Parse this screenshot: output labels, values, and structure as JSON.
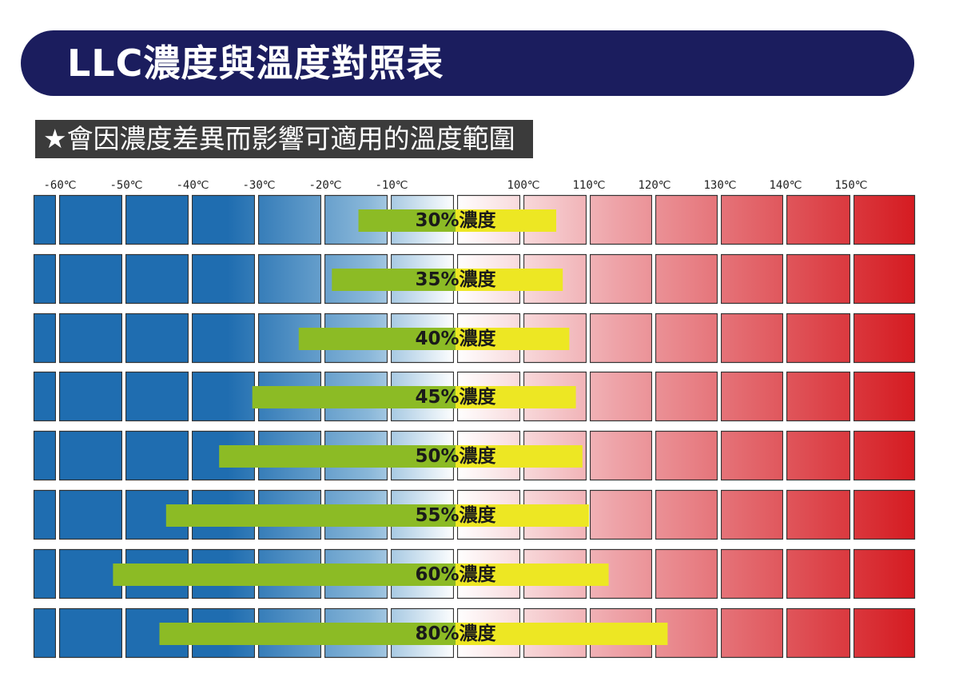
{
  "header": {
    "title": "LLC濃度與溫度對照表",
    "subtitle": "★會因濃度差異而影響可適用的溫度範圍"
  },
  "colors": {
    "banner": "#1b1d5e",
    "subtitle_bg": "#3b3b3b",
    "cold_deep": "#1f6db0",
    "cold_mid": "#89b7d9",
    "neutral": "#ffffff",
    "hot_mid": "#eea3a8",
    "hot_deep": "#d51b21",
    "low_segment": "#8cbb25",
    "high_segment": "#ede723"
  },
  "chart_data": {
    "type": "range-bar",
    "x_ticks": [
      "-60℃",
      "-50℃",
      "-40℃",
      "-30℃",
      "-20℃",
      "-10℃",
      "100℃",
      "110℃",
      "120℃",
      "130℃",
      "140℃",
      "150℃"
    ],
    "x_tick_values": [
      -60,
      -50,
      -40,
      -30,
      -20,
      -10,
      100,
      110,
      120,
      130,
      140,
      150
    ],
    "axis_break": "between -10℃ and 100℃",
    "x_range": [
      -64,
      158
    ],
    "series": [
      {
        "label": "30%濃度",
        "min_temp": -15,
        "max_temp": 105
      },
      {
        "label": "35%濃度",
        "min_temp": -19,
        "max_temp": 106
      },
      {
        "label": "40%濃度",
        "min_temp": -24,
        "max_temp": 107
      },
      {
        "label": "45%濃度",
        "min_temp": -31,
        "max_temp": 108
      },
      {
        "label": "50%濃度",
        "min_temp": -36,
        "max_temp": 109
      },
      {
        "label": "55%濃度",
        "min_temp": -44,
        "max_temp": 110
      },
      {
        "label": "60%濃度",
        "min_temp": -52,
        "max_temp": 113
      },
      {
        "label": "80%濃度",
        "min_temp": -45,
        "max_temp": 122
      }
    ]
  }
}
